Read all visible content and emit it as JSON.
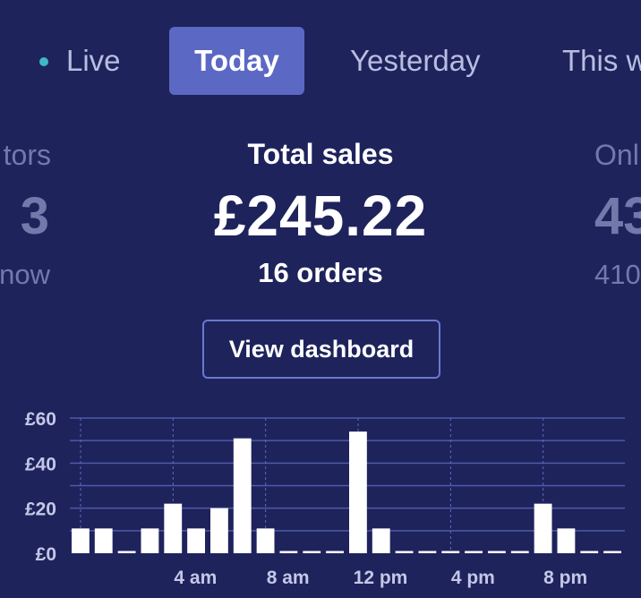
{
  "tabs": {
    "live": "Live",
    "today": "Today",
    "yesterday": "Yesterday",
    "this_week": "This w"
  },
  "stats": {
    "left": {
      "label": "tors",
      "value": "3",
      "sub": "now"
    },
    "main": {
      "label": "Total sales",
      "value": "£245.22",
      "sub": "16 orders"
    },
    "right": {
      "label": "Onl",
      "value": "43",
      "sub": "410"
    }
  },
  "dashboard_button": "View dashboard",
  "colors": {
    "background": "#1e235c",
    "tab_active": "#5b68c4",
    "live_dot": "#3fb8c4",
    "bar": "#ffffff"
  },
  "chart_data": {
    "type": "bar",
    "title": "",
    "xlabel": "",
    "ylabel": "",
    "ylim": [
      0,
      60
    ],
    "y_ticks": [
      "£0",
      "£20",
      "£40",
      "£60"
    ],
    "x_ticks": [
      "4 am",
      "8 am",
      "12 pm",
      "4 pm",
      "8 pm"
    ],
    "categories": [
      "0",
      "1",
      "2",
      "3",
      "4",
      "5",
      "6",
      "7",
      "8",
      "9",
      "10",
      "11",
      "12",
      "13",
      "14",
      "15",
      "16",
      "17",
      "18",
      "19",
      "20",
      "21",
      "22",
      "23"
    ],
    "values": [
      11,
      11,
      1,
      11,
      22,
      11,
      20,
      51,
      11,
      1,
      1,
      1,
      54,
      11,
      1,
      1,
      1,
      1,
      1,
      1,
      22,
      11,
      1,
      1
    ]
  }
}
